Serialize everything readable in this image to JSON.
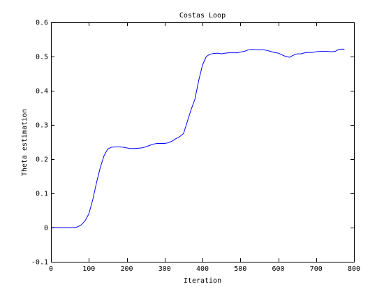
{
  "chart_data": {
    "type": "line",
    "title": "Costas Loop",
    "xlabel": "Iteration",
    "ylabel": "Theta estimation",
    "xlim": [
      0,
      800
    ],
    "ylim": [
      -0.1,
      0.6
    ],
    "xticks": [
      0,
      100,
      200,
      300,
      400,
      500,
      600,
      700,
      800
    ],
    "yticks": [
      -0.1,
      0,
      0.1,
      0.2,
      0.3,
      0.4,
      0.5,
      0.6
    ],
    "xtick_labels": [
      "0",
      "100",
      "200",
      "300",
      "400",
      "500",
      "600",
      "700",
      "800"
    ],
    "ytick_labels": [
      "-0.1",
      "0",
      "0.1",
      "0.2",
      "0.3",
      "0.4",
      "0.5",
      "0.6"
    ],
    "grid": false,
    "legend": "none",
    "series": [
      {
        "color": "#0000ff",
        "x": [
          0,
          60,
          70,
          80,
          90,
          100,
          110,
          120,
          130,
          140,
          150,
          160,
          170,
          180,
          190,
          200,
          210,
          220,
          230,
          240,
          250,
          260,
          270,
          280,
          290,
          300,
          310,
          320,
          330,
          340,
          350,
          360,
          370,
          375,
          380,
          390,
          400,
          410,
          420,
          430,
          440,
          450,
          460,
          470,
          480,
          490,
          500,
          510,
          520,
          530,
          540,
          550,
          560,
          570,
          580,
          590,
          600,
          610,
          620,
          630,
          640,
          650,
          660,
          670,
          680,
          690,
          700,
          710,
          720,
          730,
          740,
          750,
          760,
          770,
          775
        ],
        "y": [
          0,
          0,
          0.002,
          0.008,
          0.02,
          0.04,
          0.08,
          0.13,
          0.175,
          0.21,
          0.23,
          0.235,
          0.236,
          0.236,
          0.235,
          0.233,
          0.231,
          0.231,
          0.232,
          0.233,
          0.236,
          0.24,
          0.244,
          0.246,
          0.246,
          0.246,
          0.248,
          0.253,
          0.26,
          0.266,
          0.275,
          0.31,
          0.345,
          0.36,
          0.375,
          0.43,
          0.475,
          0.5,
          0.507,
          0.509,
          0.51,
          0.508,
          0.51,
          0.511,
          0.511,
          0.511,
          0.513,
          0.515,
          0.519,
          0.521,
          0.52,
          0.52,
          0.52,
          0.518,
          0.515,
          0.512,
          0.51,
          0.505,
          0.5,
          0.498,
          0.504,
          0.508,
          0.508,
          0.511,
          0.512,
          0.512,
          0.514,
          0.515,
          0.515,
          0.515,
          0.514,
          0.515,
          0.521,
          0.522,
          0.521
        ]
      }
    ]
  }
}
